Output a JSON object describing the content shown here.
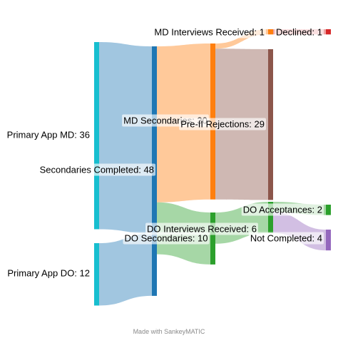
{
  "chart_data": {
    "type": "sankey",
    "nodes": [
      {
        "id": "primary_md",
        "name": "Primary App MD",
        "value": 36,
        "color": "#17becf"
      },
      {
        "id": "primary_do",
        "name": "Primary App DO",
        "value": 12,
        "color": "#17becf"
      },
      {
        "id": "secondaries_completed",
        "name": "Secondaries Completed",
        "value": 48,
        "color": "#1f77b4"
      },
      {
        "id": "md_secondaries",
        "name": "MD Secondaries",
        "value": 30,
        "color": "#ff7f0e"
      },
      {
        "id": "do_secondaries",
        "name": "DO Secondaries",
        "value": 10,
        "color": "#2ca02c"
      },
      {
        "id": "md_interviews",
        "name": "MD Interviews Received",
        "value": 1,
        "color": "#ff7f0e"
      },
      {
        "id": "pre_ii_rejections",
        "name": "Pre-II Rejections",
        "value": 29,
        "color": "#8c564b"
      },
      {
        "id": "do_interviews",
        "name": "DO Interviews Received",
        "value": 6,
        "color": "#2ca02c"
      },
      {
        "id": "declined",
        "name": "Declined",
        "value": 1,
        "color": "#d62728"
      },
      {
        "id": "do_acceptances",
        "name": "DO Acceptances",
        "value": 2,
        "color": "#2ca02c"
      },
      {
        "id": "not_completed",
        "name": "Not Completed",
        "value": 4,
        "color": "#9467bd"
      }
    ],
    "links": [
      {
        "source": "primary_md",
        "target": "secondaries_completed",
        "value": 36
      },
      {
        "source": "primary_do",
        "target": "secondaries_completed",
        "value": 12
      },
      {
        "source": "secondaries_completed",
        "target": "md_secondaries",
        "value": 30
      },
      {
        "source": "secondaries_completed",
        "target": "do_secondaries",
        "value": 10
      },
      {
        "source": "md_secondaries",
        "target": "md_interviews",
        "value": 1
      },
      {
        "source": "md_secondaries",
        "target": "pre_ii_rejections",
        "value": 29
      },
      {
        "source": "do_secondaries",
        "target": "do_interviews",
        "value": 6
      },
      {
        "source": "md_interviews",
        "target": "declined",
        "value": 1
      },
      {
        "source": "do_interviews",
        "target": "do_acceptances",
        "value": 2
      },
      {
        "source": "do_interviews",
        "target": "not_completed",
        "value": 4
      }
    ]
  },
  "footer": {
    "credit": "Made with SankeyMATIC"
  }
}
